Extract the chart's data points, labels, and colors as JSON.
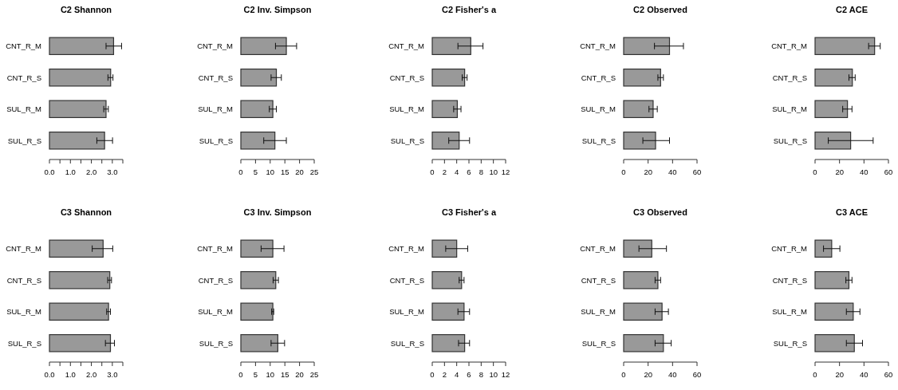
{
  "chart_data": [
    {
      "type": "bar",
      "orientation": "horizontal",
      "title": "C2 Shannon",
      "categories": [
        "CNT_R_M",
        "CNT_R_S",
        "SUL_R_M",
        "SUL_R_S"
      ],
      "values": [
        3.06,
        2.92,
        2.7,
        2.63
      ],
      "errors": [
        [
          2.7,
          3.44
        ],
        [
          2.79,
          3.03
        ],
        [
          2.59,
          2.81
        ],
        [
          2.26,
          3.01
        ]
      ],
      "color": "#999999",
      "xlim": [
        0,
        3.5
      ],
      "xticks": [
        {
          "value": 0,
          "label": "0.0"
        },
        {
          "value": 0.5,
          "label": null
        },
        {
          "value": 1,
          "label": "1.0"
        },
        {
          "value": 1.5,
          "label": null
        },
        {
          "value": 2,
          "label": "2.0"
        },
        {
          "value": 2.5,
          "label": null
        },
        {
          "value": 3,
          "label": "3.0"
        },
        {
          "value": 3.5,
          "label": null
        }
      ]
    },
    {
      "type": "bar",
      "orientation": "horizontal",
      "title": "C2 Inv. Simpson",
      "categories": [
        "CNT_R_M",
        "CNT_R_S",
        "SUL_R_M",
        "SUL_R_S"
      ],
      "values": [
        15.5,
        12.1,
        10.9,
        11.6
      ],
      "errors": [
        [
          11.8,
          19.0
        ],
        [
          10.3,
          13.8
        ],
        [
          9.7,
          12.1
        ],
        [
          7.8,
          15.5
        ]
      ],
      "color": "#999999",
      "xlim": [
        0,
        25
      ],
      "xticks": [
        0,
        5,
        10,
        15,
        20,
        25
      ]
    },
    {
      "type": "bar",
      "orientation": "horizontal",
      "title": "C2 Fisher's a",
      "categories": [
        "CNT_R_M",
        "CNT_R_S",
        "SUL_R_M",
        "SUL_R_S"
      ],
      "values": [
        6.3,
        5.3,
        4.1,
        4.4
      ],
      "errors": [
        [
          4.2,
          8.3
        ],
        [
          4.9,
          5.7
        ],
        [
          3.5,
          4.7
        ],
        [
          2.7,
          6.1
        ]
      ],
      "color": "#999999",
      "xlim": [
        0,
        12
      ],
      "xticks": [
        0,
        2,
        4,
        6,
        8,
        10,
        12
      ]
    },
    {
      "type": "bar",
      "orientation": "horizontal",
      "title": "C2 Observed",
      "categories": [
        "CNT_R_M",
        "CNT_R_S",
        "SUL_R_M",
        "SUL_R_S"
      ],
      "values": [
        37.5,
        30.2,
        24.1,
        26.1
      ],
      "errors": [
        [
          25.2,
          48.9
        ],
        [
          28,
          32.5
        ],
        [
          20.7,
          27.5
        ],
        [
          15.7,
          37.5
        ]
      ],
      "color": "#999999",
      "xlim": [
        0,
        60
      ],
      "xticks": [
        0,
        20,
        40,
        60
      ]
    },
    {
      "type": "bar",
      "orientation": "horizontal",
      "title": "C2 ACE",
      "categories": [
        "CNT_R_M",
        "CNT_R_S",
        "SUL_R_M",
        "SUL_R_S"
      ],
      "values": [
        48.7,
        30.5,
        26.5,
        29.1
      ],
      "errors": [
        [
          43.8,
          53.3
        ],
        [
          27.7,
          32.8
        ],
        [
          22.6,
          30.2
        ],
        [
          10.8,
          47.5
        ]
      ],
      "color": "#999999",
      "xlim": [
        0,
        60
      ],
      "xticks": [
        0,
        20,
        40,
        60
      ]
    },
    {
      "type": "bar",
      "orientation": "horizontal",
      "title": "C3 Shannon",
      "categories": [
        "CNT_R_M",
        "CNT_R_S",
        "SUL_R_M",
        "SUL_R_S"
      ],
      "values": [
        2.56,
        2.88,
        2.82,
        2.91
      ],
      "errors": [
        [
          2.04,
          3.02
        ],
        [
          2.78,
          2.96
        ],
        [
          2.73,
          2.91
        ],
        [
          2.67,
          3.1
        ]
      ],
      "color": "#999999",
      "xlim": [
        0,
        3.5
      ],
      "xticks": [
        {
          "value": 0,
          "label": "0.0"
        },
        {
          "value": 0.5,
          "label": null
        },
        {
          "value": 1,
          "label": "1.0"
        },
        {
          "value": 1.5,
          "label": null
        },
        {
          "value": 2,
          "label": "2.0"
        },
        {
          "value": 2.5,
          "label": null
        },
        {
          "value": 3,
          "label": "3.0"
        },
        {
          "value": 3.5,
          "label": null
        }
      ]
    },
    {
      "type": "bar",
      "orientation": "horizontal",
      "title": "C3 Inv. Simpson",
      "categories": [
        "CNT_R_M",
        "CNT_R_S",
        "SUL_R_M",
        "SUL_R_S"
      ],
      "values": [
        10.9,
        11.9,
        10.9,
        12.6
      ],
      "errors": [
        [
          6.9,
          14.7
        ],
        [
          11.0,
          12.8
        ],
        [
          10.5,
          11.2
        ],
        [
          10.3,
          14.9
        ]
      ],
      "color": "#999999",
      "xlim": [
        0,
        25
      ],
      "xticks": [
        0,
        5,
        10,
        15,
        20,
        25
      ]
    },
    {
      "type": "bar",
      "orientation": "horizontal",
      "title": "C3 Fisher's a",
      "categories": [
        "CNT_R_M",
        "CNT_R_S",
        "SUL_R_M",
        "SUL_R_S"
      ],
      "values": [
        4.0,
        4.8,
        5.2,
        5.3
      ],
      "errors": [
        [
          2.2,
          5.8
        ],
        [
          4.4,
          5.2
        ],
        [
          4.2,
          6.1
        ],
        [
          4.3,
          6.1
        ]
      ],
      "color": "#999999",
      "xlim": [
        0,
        12
      ],
      "xticks": [
        0,
        2,
        4,
        6,
        8,
        10,
        12
      ]
    },
    {
      "type": "bar",
      "orientation": "horizontal",
      "title": "C3 Observed",
      "categories": [
        "CNT_R_M",
        "CNT_R_S",
        "SUL_R_M",
        "SUL_R_S"
      ],
      "values": [
        23,
        28,
        31.4,
        32.5
      ],
      "errors": [
        [
          12.5,
          35
        ],
        [
          25.7,
          30.2
        ],
        [
          25.7,
          36.6
        ],
        [
          25.7,
          38.9
        ]
      ],
      "color": "#999999",
      "xlim": [
        0,
        60
      ],
      "xticks": [
        0,
        20,
        40,
        60
      ]
    },
    {
      "type": "bar",
      "orientation": "horizontal",
      "title": "C3 ACE",
      "categories": [
        "CNT_R_M",
        "CNT_R_S",
        "SUL_R_M",
        "SUL_R_S"
      ],
      "values": [
        13.6,
        27.7,
        31.2,
        32.1
      ],
      "errors": [
        [
          6.9,
          20.3
        ],
        [
          25.2,
          30.2
        ],
        [
          25.6,
          36.7
        ],
        [
          25.6,
          38.8
        ]
      ],
      "color": "#999999",
      "xlim": [
        0,
        60
      ],
      "xticks": [
        0,
        20,
        40,
        60
      ]
    }
  ]
}
